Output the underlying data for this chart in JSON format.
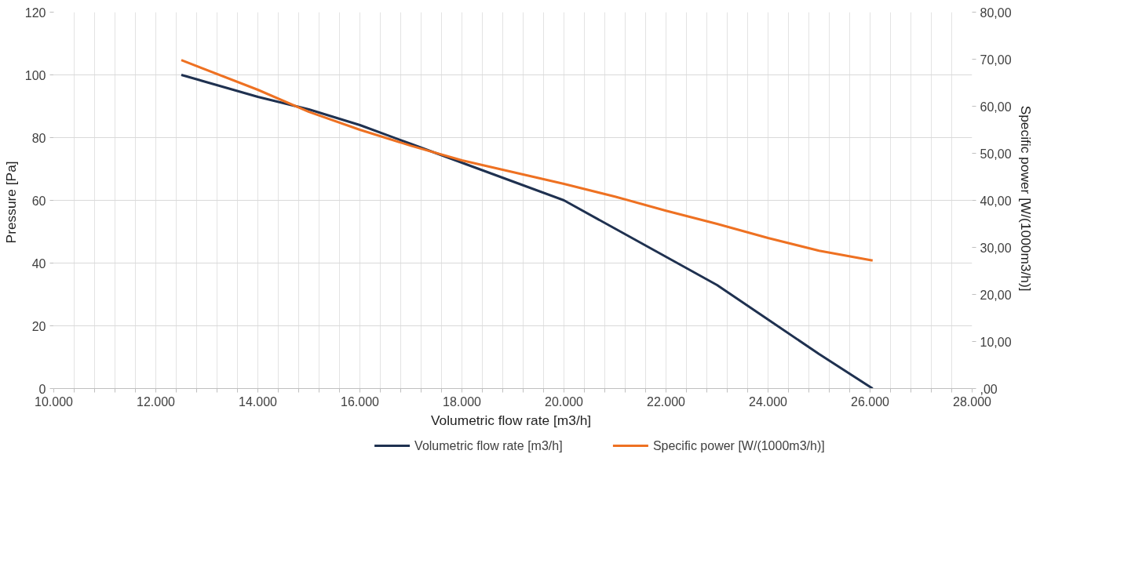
{
  "chart_data": {
    "type": "line",
    "xlabel": "Volumetric flow rate  [m3/h]",
    "ylabel": "Pressure  [Pa]",
    "y2label": "Specific power  [W/(1000m3/h)]",
    "xlim": [
      10000,
      28000
    ],
    "xticks": [
      {
        "value": 10000,
        "label": "10.000"
      },
      {
        "value": 10400,
        "label": null
      },
      {
        "value": 10800,
        "label": null
      },
      {
        "value": 11200,
        "label": null
      },
      {
        "value": 11600,
        "label": null
      },
      {
        "value": 12000,
        "label": "12.000"
      },
      {
        "value": 12400,
        "label": null
      },
      {
        "value": 12800,
        "label": null
      },
      {
        "value": 13200,
        "label": null
      },
      {
        "value": 13600,
        "label": null
      },
      {
        "value": 14000,
        "label": "14.000"
      },
      {
        "value": 14400,
        "label": null
      },
      {
        "value": 14800,
        "label": null
      },
      {
        "value": 15200,
        "label": null
      },
      {
        "value": 15600,
        "label": null
      },
      {
        "value": 16000,
        "label": "16.000"
      },
      {
        "value": 16400,
        "label": null
      },
      {
        "value": 16800,
        "label": null
      },
      {
        "value": 17200,
        "label": null
      },
      {
        "value": 17600,
        "label": null
      },
      {
        "value": 18000,
        "label": "18.000"
      },
      {
        "value": 18400,
        "label": null
      },
      {
        "value": 18800,
        "label": null
      },
      {
        "value": 19200,
        "label": null
      },
      {
        "value": 19600,
        "label": null
      },
      {
        "value": 20000,
        "label": "20.000"
      },
      {
        "value": 20400,
        "label": null
      },
      {
        "value": 20800,
        "label": null
      },
      {
        "value": 21200,
        "label": null
      },
      {
        "value": 21600,
        "label": null
      },
      {
        "value": 22000,
        "label": "22.000"
      },
      {
        "value": 22400,
        "label": null
      },
      {
        "value": 22800,
        "label": null
      },
      {
        "value": 23200,
        "label": null
      },
      {
        "value": 23600,
        "label": null
      },
      {
        "value": 24000,
        "label": "24.000"
      },
      {
        "value": 24400,
        "label": null
      },
      {
        "value": 24800,
        "label": null
      },
      {
        "value": 25200,
        "label": null
      },
      {
        "value": 25600,
        "label": null
      },
      {
        "value": 26000,
        "label": "26.000"
      },
      {
        "value": 26400,
        "label": null
      },
      {
        "value": 26800,
        "label": null
      },
      {
        "value": 27200,
        "label": null
      },
      {
        "value": 27600,
        "label": null
      },
      {
        "value": 28000,
        "label": "28.000"
      }
    ],
    "ylim": [
      0,
      120
    ],
    "yticks": [
      0,
      20,
      40,
      60,
      80,
      100,
      120
    ],
    "y2lim": [
      0,
      80
    ],
    "y2ticks": [
      {
        "value": 0,
        "label": ",00"
      },
      {
        "value": 10,
        "label": "10,00"
      },
      {
        "value": 20,
        "label": "20,00"
      },
      {
        "value": 30,
        "label": "30,00"
      },
      {
        "value": 40,
        "label": "40,00"
      },
      {
        "value": 50,
        "label": "50,00"
      },
      {
        "value": 60,
        "label": "60,00"
      },
      {
        "value": 70,
        "label": "70,00"
      },
      {
        "value": 80,
        "label": "80,00"
      }
    ],
    "grid": true,
    "legend": "bottom",
    "marker": "none",
    "line_style": "solid",
    "series": [
      {
        "name": "Volumetric flow rate  [m3/h]",
        "color": "#1f3150",
        "x": [
          12500,
          14000,
          15000,
          16000,
          17000,
          18000,
          19000,
          20000,
          21000,
          22000,
          23000,
          24000,
          25000,
          26050
        ],
        "values": [
          100,
          93,
          89,
          84,
          78,
          72,
          66,
          60,
          51,
          42,
          33,
          22,
          11,
          0
        ]
      },
      {
        "name": "Specific power  [W/(1000m3/h)]",
        "color": "#ee7122",
        "axis": "y2",
        "x": [
          12500,
          14000,
          15000,
          16000,
          17000,
          18000,
          19000,
          20000,
          21000,
          22000,
          23000,
          24000,
          25000,
          26050
        ],
        "values": [
          69.8,
          63.5,
          58.8,
          55,
          51.6,
          48.5,
          46,
          43.5,
          40.8,
          37.8,
          35,
          32,
          29.3,
          27.2
        ]
      }
    ]
  }
}
